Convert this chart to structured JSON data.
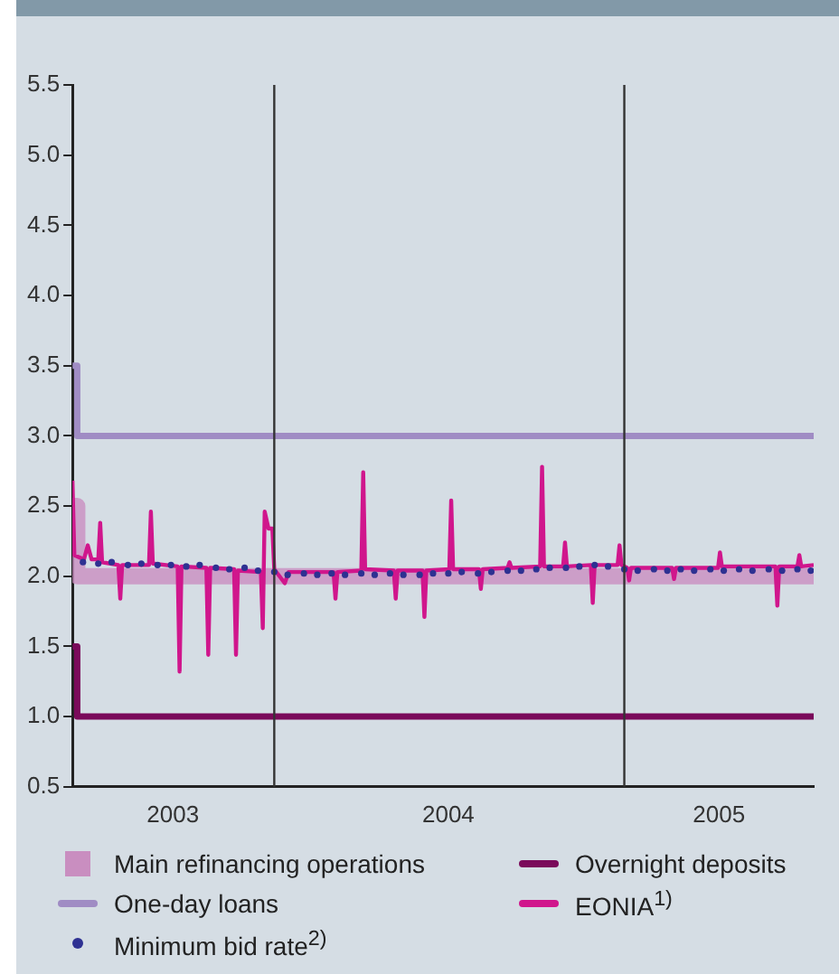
{
  "chart_data": {
    "type": "line",
    "xlim": [
      "2003-06-04",
      "2005-07-18"
    ],
    "xticks": [
      {
        "value": "2003-09-17",
        "label": "2003"
      },
      {
        "value": "2004-07-01",
        "label": "2004"
      },
      {
        "value": "2005-04-10",
        "label": "2005"
      }
    ],
    "ylim": [
      0.5,
      5.5
    ],
    "yticks": [
      0.5,
      {
        "value": 1,
        "label": "1.0"
      },
      1.5,
      {
        "value": 2,
        "label": "2.0"
      },
      2.5,
      {
        "value": 3,
        "label": "3.0"
      },
      3.5,
      {
        "value": 4,
        "label": "4.0"
      },
      4.5,
      {
        "value": 5,
        "label": "5.0"
      },
      5.5
    ],
    "ref_lines": [
      {
        "axis": "x",
        "value": "2004-01-01",
        "color": "#333333"
      },
      {
        "axis": "x",
        "value": "2005-01-01",
        "color": "#333333"
      }
    ],
    "grid": false,
    "legend": "bottom",
    "series": [
      {
        "name": "Main refinancing operations",
        "color": "#c98ec0",
        "x": [
          "2003-06-04",
          "2003-06-09",
          "2003-06-09",
          "2005-07-18"
        ],
        "values": [
          2.5,
          2.5,
          2.0,
          2.0
        ]
      },
      {
        "name": "One-day loans",
        "color": "#a08cc4",
        "x": [
          "2003-06-04",
          "2003-06-09",
          "2003-06-09",
          "2005-07-18"
        ],
        "values": [
          3.5,
          3.5,
          3.0,
          3.0
        ]
      },
      {
        "name": "Minimum bid rate$^{2)}$",
        "type": "scatter",
        "color": "#2e3192",
        "marker": "circle",
        "x": [
          "2003-06-15",
          "2003-07-01",
          "2003-07-15",
          "2003-08-01",
          "2003-08-15",
          "2003-09-01",
          "2003-09-15",
          "2003-10-01",
          "2003-10-15",
          "2003-11-01",
          "2003-11-15",
          "2003-12-01",
          "2003-12-15",
          "2004-01-01",
          "2004-01-15",
          "2004-02-01",
          "2004-02-15",
          "2004-03-01",
          "2004-03-15",
          "2004-04-01",
          "2004-04-15",
          "2004-05-01",
          "2004-05-15",
          "2004-06-01",
          "2004-06-15",
          "2004-07-01",
          "2004-07-15",
          "2004-08-01",
          "2004-08-15",
          "2004-09-01",
          "2004-09-15",
          "2004-10-01",
          "2004-10-15",
          "2004-11-01",
          "2004-11-15",
          "2004-12-01",
          "2004-12-15",
          "2005-01-01",
          "2005-01-15",
          "2005-02-01",
          "2005-02-15",
          "2005-03-01",
          "2005-03-15",
          "2005-04-01",
          "2005-04-15",
          "2005-05-01",
          "2005-05-15",
          "2005-06-01",
          "2005-06-15",
          "2005-07-01",
          "2005-07-15"
        ],
        "values": [
          2.1,
          2.09,
          2.1,
          2.08,
          2.09,
          2.08,
          2.08,
          2.07,
          2.08,
          2.06,
          2.05,
          2.06,
          2.04,
          2.03,
          2.01,
          2.02,
          2.01,
          2.02,
          2.01,
          2.02,
          2.01,
          2.02,
          2.01,
          2.01,
          2.02,
          2.02,
          2.03,
          2.02,
          2.03,
          2.04,
          2.04,
          2.05,
          2.06,
          2.06,
          2.07,
          2.08,
          2.07,
          2.05,
          2.04,
          2.05,
          2.04,
          2.05,
          2.04,
          2.05,
          2.04,
          2.05,
          2.04,
          2.05,
          2.04,
          2.05,
          2.04
        ]
      },
      {
        "name": "Overnight deposits",
        "color": "#7a0a5a",
        "x": [
          "2003-06-04",
          "2003-06-09",
          "2003-06-09",
          "2005-07-18"
        ],
        "values": [
          1.5,
          1.5,
          1.0,
          1.0
        ]
      },
      {
        "name": "EONIA$^{1)}$",
        "color": "#d0168c",
        "x": [
          "2003-06-04",
          "2003-06-06",
          "2003-06-16",
          "2003-06-20",
          "2003-06-24",
          "2003-07-01",
          "2003-07-03",
          "2003-07-05",
          "2003-07-22",
          "2003-07-24",
          "2003-07-26",
          "2003-08-23",
          "2003-08-25",
          "2003-08-27",
          "2003-09-22",
          "2003-09-24",
          "2003-09-26",
          "2003-10-22",
          "2003-10-24",
          "2003-10-26",
          "2003-11-20",
          "2003-11-22",
          "2003-11-24",
          "2003-12-18",
          "2003-12-20",
          "2003-12-22",
          "2003-12-26",
          "2003-12-30",
          "2004-01-01",
          "2004-01-12",
          "2004-01-16",
          "2004-03-03",
          "2004-03-05",
          "2004-03-07",
          "2004-04-01",
          "2004-04-03",
          "2004-04-05",
          "2004-05-05",
          "2004-05-07",
          "2004-05-09",
          "2004-06-04",
          "2004-06-06",
          "2004-06-08",
          "2004-07-02",
          "2004-07-04",
          "2004-07-06",
          "2004-08-02",
          "2004-08-04",
          "2004-08-06",
          "2004-09-01",
          "2004-09-03",
          "2004-09-05",
          "2004-10-05",
          "2004-10-07",
          "2004-10-09",
          "2004-10-29",
          "2004-10-31",
          "2004-11-02",
          "2004-11-27",
          "2004-11-29",
          "2004-12-01",
          "2004-12-25",
          "2004-12-27",
          "2004-12-29",
          "2005-01-04",
          "2005-01-06",
          "2005-01-08",
          "2005-02-20",
          "2005-02-22",
          "2005-02-24",
          "2005-04-09",
          "2005-04-11",
          "2005-04-13",
          "2005-06-08",
          "2005-06-10",
          "2005-06-12",
          "2005-07-01",
          "2005-07-03",
          "2005-07-05",
          "2005-07-18"
        ],
        "values": [
          2.68,
          2.15,
          2.12,
          2.22,
          2.12,
          2.12,
          2.38,
          2.1,
          2.08,
          1.84,
          2.08,
          2.08,
          2.46,
          2.09,
          2.07,
          1.32,
          2.07,
          2.06,
          1.44,
          2.06,
          2.05,
          1.44,
          2.04,
          2.03,
          1.63,
          2.46,
          2.34,
          2.34,
          2.05,
          1.95,
          2.03,
          2.03,
          1.84,
          2.03,
          2.04,
          2.74,
          2.05,
          2.04,
          1.84,
          2.04,
          2.04,
          1.71,
          2.04,
          2.05,
          2.54,
          2.05,
          2.05,
          1.91,
          2.05,
          2.06,
          2.1,
          2.06,
          2.07,
          2.78,
          2.07,
          2.07,
          2.24,
          2.07,
          2.08,
          1.81,
          2.08,
          2.08,
          2.22,
          2.08,
          2.06,
          1.97,
          2.06,
          2.06,
          1.98,
          2.06,
          2.06,
          2.17,
          2.07,
          2.07,
          1.79,
          2.07,
          2.07,
          2.15,
          2.07,
          2.08
        ]
      }
    ]
  }
}
